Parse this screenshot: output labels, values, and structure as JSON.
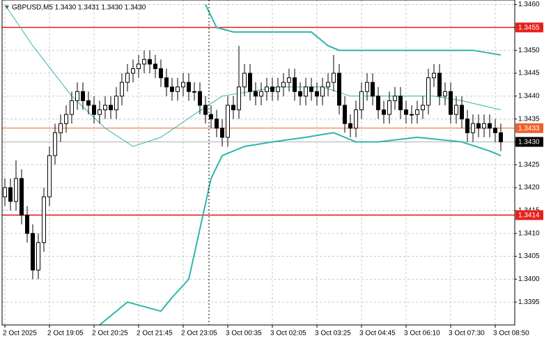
{
  "chart_data": {
    "type": "candlestick",
    "title": "GBPUSD,M5  1.3430 1.3431 1.3430 1.3430",
    "open": [
      1.3418,
      1.342,
      1.3417,
      1.3422,
      1.3414,
      1.341,
      1.3402,
      1.3408,
      1.3418,
      1.3427,
      1.3432,
      1.3434,
      1.3436,
      1.3439,
      1.3441,
      1.3439,
      1.3438,
      1.3436,
      1.3437,
      1.3438,
      1.3437,
      1.344,
      1.3443,
      1.3445,
      1.3446,
      1.3447,
      1.3448,
      1.3447,
      1.3446,
      1.3444,
      1.3442,
      1.3441,
      1.3442,
      1.3443,
      1.3441,
      1.3441,
      1.3438,
      1.3436,
      1.3435,
      1.3433,
      1.3431,
      1.3438,
      1.3437,
      1.3442,
      1.3445,
      1.3441,
      1.344,
      1.3441,
      1.3442,
      1.3441,
      1.3442,
      1.3443,
      1.3444,
      1.3441,
      1.344,
      1.3442,
      1.3441,
      1.344,
      1.3442,
      1.3443,
      1.3445,
      1.3438,
      1.3434,
      1.3433,
      1.3437,
      1.3441,
      1.3443,
      1.344,
      1.3437,
      1.3436,
      1.3439,
      1.344,
      1.3437,
      1.3436,
      1.3436,
      1.3437,
      1.3438,
      1.3444,
      1.3445,
      1.344,
      1.3441,
      1.3436,
      1.3438,
      1.3435,
      1.3432,
      1.3434,
      1.3433,
      1.3434,
      1.3433,
      1.3432
    ],
    "high": [
      1.3422,
      1.3422,
      1.3426,
      1.3424,
      1.3416,
      1.3412,
      1.341,
      1.342,
      1.3429,
      1.3434,
      1.3436,
      1.3438,
      1.3441,
      1.3443,
      1.3443,
      1.3441,
      1.344,
      1.3439,
      1.344,
      1.344,
      1.3442,
      1.3445,
      1.3447,
      1.3448,
      1.3449,
      1.345,
      1.345,
      1.3449,
      1.3448,
      1.3446,
      1.3444,
      1.3444,
      1.3445,
      1.3445,
      1.3443,
      1.3443,
      1.344,
      1.3438,
      1.3437,
      1.3435,
      1.344,
      1.344,
      1.3451,
      1.3447,
      1.3447,
      1.3443,
      1.3443,
      1.3444,
      1.3444,
      1.3444,
      1.3445,
      1.3446,
      1.3446,
      1.3443,
      1.3444,
      1.3444,
      1.3443,
      1.3444,
      1.3445,
      1.3449,
      1.3447,
      1.344,
      1.3436,
      1.3439,
      1.3443,
      1.3445,
      1.3445,
      1.3442,
      1.3439,
      1.3441,
      1.3442,
      1.3442,
      1.3439,
      1.3438,
      1.3439,
      1.344,
      1.3446,
      1.3447,
      1.3447,
      1.3443,
      1.3443,
      1.344,
      1.344,
      1.3437,
      1.3436,
      1.3436,
      1.3436,
      1.3436,
      1.3435,
      1.3434
    ],
    "low": [
      1.3416,
      1.3415,
      1.3415,
      1.3412,
      1.3408,
      1.34,
      1.34,
      1.3406,
      1.3416,
      1.3425,
      1.343,
      1.3432,
      1.3434,
      1.3437,
      1.3437,
      1.3436,
      1.3434,
      1.3434,
      1.3435,
      1.3435,
      1.3435,
      1.3438,
      1.3441,
      1.3443,
      1.3444,
      1.3445,
      1.3445,
      1.3444,
      1.3442,
      1.344,
      1.3439,
      1.3439,
      1.344,
      1.3439,
      1.3439,
      1.3436,
      1.3434,
      1.3433,
      1.3431,
      1.3429,
      1.3429,
      1.3435,
      1.3435,
      1.344,
      1.3439,
      1.3438,
      1.3438,
      1.3439,
      1.3439,
      1.3439,
      1.344,
      1.3441,
      1.3439,
      1.3438,
      1.3438,
      1.3439,
      1.3438,
      1.3438,
      1.344,
      1.3441,
      1.3436,
      1.3432,
      1.3431,
      1.3431,
      1.3435,
      1.3439,
      1.3438,
      1.3435,
      1.3434,
      1.3434,
      1.3437,
      1.3435,
      1.3434,
      1.3434,
      1.3434,
      1.3435,
      1.3436,
      1.3442,
      1.3438,
      1.3438,
      1.3434,
      1.3434,
      1.3433,
      1.343,
      1.343,
      1.3431,
      1.3431,
      1.3431,
      1.343,
      1.3428
    ],
    "close": [
      1.342,
      1.3417,
      1.3422,
      1.3414,
      1.341,
      1.3402,
      1.3408,
      1.3418,
      1.3427,
      1.3432,
      1.3434,
      1.3436,
      1.3439,
      1.3441,
      1.3439,
      1.3438,
      1.3436,
      1.3437,
      1.3438,
      1.3437,
      1.344,
      1.3443,
      1.3445,
      1.3446,
      1.3447,
      1.3448,
      1.3447,
      1.3446,
      1.3444,
      1.3442,
      1.3441,
      1.3442,
      1.3443,
      1.3441,
      1.3441,
      1.3438,
      1.3436,
      1.3435,
      1.3433,
      1.3431,
      1.3438,
      1.3437,
      1.3442,
      1.3445,
      1.3441,
      1.344,
      1.3441,
      1.3442,
      1.3441,
      1.3442,
      1.3443,
      1.3444,
      1.3441,
      1.344,
      1.3442,
      1.3441,
      1.344,
      1.3442,
      1.3443,
      1.3445,
      1.3438,
      1.3434,
      1.3433,
      1.3437,
      1.3441,
      1.3443,
      1.344,
      1.3437,
      1.3436,
      1.3439,
      1.344,
      1.3437,
      1.3436,
      1.3436,
      1.3437,
      1.3438,
      1.3444,
      1.3445,
      1.344,
      1.3441,
      1.3436,
      1.3438,
      1.3435,
      1.3432,
      1.3434,
      1.3433,
      1.3434,
      1.3433,
      1.3432,
      1.343
    ],
    "bull_color": "#ffffff",
    "bear_color": "#000000",
    "lines": [
      {
        "color": "#2fb5aa",
        "x": [
          36,
          38,
          41,
          44,
          50,
          55,
          58,
          60,
          63,
          70,
          75,
          80,
          84,
          89
        ],
        "values": [
          1.346,
          1.3455,
          1.3454,
          1.3454,
          1.3454,
          1.3454,
          1.3451,
          1.345,
          1.345,
          1.345,
          1.345,
          1.345,
          1.345,
          1.3449
        ]
      },
      {
        "color": "#2fb5aa",
        "x": [
          0,
          5,
          12,
          18,
          23,
          28,
          34,
          39,
          49,
          57,
          62,
          69,
          77,
          82,
          89
        ],
        "values": [
          1.346,
          1.3451,
          1.344,
          1.3433,
          1.3429,
          1.3431,
          1.3436,
          1.344,
          1.3442,
          1.3442,
          1.344,
          1.344,
          1.344,
          1.3439,
          1.3437
        ]
      },
      {
        "color": "#2fb5aa",
        "x": [
          17,
          22,
          28,
          30,
          33,
          35,
          37,
          39,
          43,
          48,
          54,
          59,
          63,
          67,
          74,
          82,
          87,
          89
        ],
        "values": [
          1.339,
          1.3395,
          1.3393,
          1.3396,
          1.34,
          1.3411,
          1.3422,
          1.3427,
          1.3429,
          1.343,
          1.3431,
          1.3432,
          1.343,
          1.343,
          1.3431,
          1.343,
          1.3428,
          1.3427
        ]
      }
    ],
    "levels": [
      {
        "value": 1.3455,
        "label": "1.3455",
        "color": "#e8201a"
      },
      {
        "value": 1.3433,
        "label": "1.3433",
        "color": "#f0602a"
      },
      {
        "value": 1.3414,
        "label": "1.3414",
        "color": "#e8201a"
      },
      {
        "value": 1.343,
        "label": "1.3430",
        "color": "#000000"
      }
    ],
    "xlim": [
      -0.5,
      91.5
    ],
    "xticks": [
      {
        "value": 0,
        "label": "2 Oct 2025"
      },
      {
        "value": 8,
        "label": "2 Oct 19:05"
      },
      {
        "value": 16,
        "label": "2 Oct 20:25"
      },
      {
        "value": 24,
        "label": "2 Oct 21:45"
      },
      {
        "value": 32,
        "label": "2 Oct 23:05"
      },
      {
        "value": 40,
        "label": "3 Oct 00:35"
      },
      {
        "value": 48,
        "label": "3 Oct 02:05"
      },
      {
        "value": 56,
        "label": "3 Oct 03:25"
      },
      {
        "value": 64,
        "label": "3 Oct 04:45"
      },
      {
        "value": 72,
        "label": "3 Oct 06:10"
      },
      {
        "value": 80,
        "label": "3 Oct 07:30"
      },
      {
        "value": 88,
        "label": "3 Oct 08:50"
      }
    ],
    "ylim": [
      1.339,
      1.3461
    ],
    "yticks": [
      1.3395,
      {
        "value": 1.34,
        "label": "1.3400"
      },
      1.3405,
      {
        "value": 1.341,
        "label": "1.3410"
      },
      1.3415,
      {
        "value": 1.342,
        "label": "1.3420"
      },
      1.3425,
      {
        "value": 1.343,
        "label": "1.3430"
      },
      1.3435,
      {
        "value": 1.344,
        "label": "1.3440"
      },
      1.3445,
      {
        "value": 1.345,
        "label": "1.3450"
      },
      1.3455,
      {
        "value": 1.346,
        "label": "1.3460"
      }
    ],
    "grid": true
  }
}
